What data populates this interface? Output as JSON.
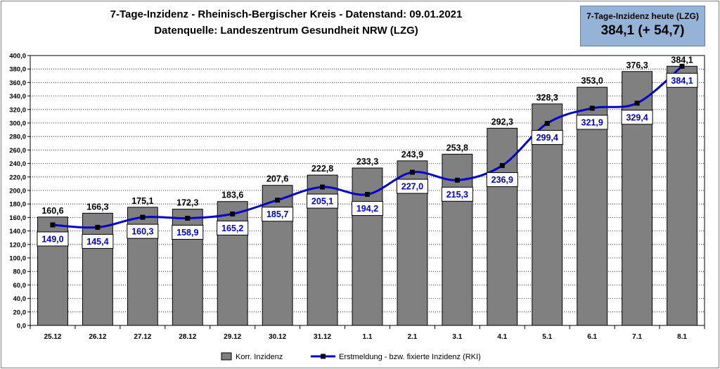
{
  "chart_data": {
    "type": "bar",
    "title": "7-Tage-Inzidenz - Rheinisch-Bergischer Kreis - Datenstand: 09.01.2021",
    "subtitle": "Datenquelle: Landeszentrum Gesundheit NRW (LZG)",
    "categories": [
      "25.12",
      "26.12",
      "27.12",
      "28.12",
      "29.12",
      "30.12",
      "31.12",
      "1.1",
      "2.1",
      "3.1",
      "4.1",
      "5.1",
      "6.1",
      "7.1",
      "8.1"
    ],
    "series": [
      {
        "name": "Korr. Inzidenz",
        "type": "bar",
        "color": "#808080",
        "values": [
          160.6,
          166.3,
          175.1,
          172.3,
          183.6,
          207.6,
          222.8,
          233.3,
          243.9,
          253.8,
          292.3,
          328.3,
          353.0,
          376.3,
          384.1
        ],
        "labels": [
          "160,6",
          "166,3",
          "175,1",
          "172,3",
          "183,6",
          "207,6",
          "222,8",
          "233,3",
          "243,9",
          "253,8",
          "292,3",
          "328,3",
          "353,0",
          "376,3",
          "384,1"
        ]
      },
      {
        "name": "Erstmeldung - bzw. fixierte Inzidenz (RKI)",
        "type": "line",
        "color": "#0000cc",
        "values": [
          149.0,
          145.4,
          160.3,
          158.9,
          165.2,
          185.7,
          205.1,
          194.2,
          227.0,
          215.3,
          236.9,
          299.4,
          321.9,
          329.4,
          384.1
        ],
        "labels": [
          "149,0",
          "145,4",
          "160,3",
          "158,9",
          "165,2",
          "185,7",
          "205,1",
          "194,2",
          "227,0",
          "215,3",
          "236,9",
          "299,4",
          "321,9",
          "329,4",
          "384,1"
        ]
      }
    ],
    "ylim": [
      0,
      400
    ],
    "yticks": [
      0,
      20,
      40,
      60,
      80,
      100,
      120,
      140,
      160,
      180,
      200,
      220,
      240,
      260,
      280,
      300,
      320,
      340,
      360,
      380,
      400
    ],
    "ytick_labels": [
      "0,0",
      "20,0",
      "40,0",
      "60,0",
      "80,0",
      "100,0",
      "120,0",
      "140,0",
      "160,0",
      "180,0",
      "200,0",
      "220,0",
      "240,0",
      "260,0",
      "280,0",
      "300,0",
      "320,0",
      "340,0",
      "360,0",
      "380,0",
      "400,0"
    ],
    "grid": true,
    "legend_position": "bottom"
  },
  "infobox": {
    "label": "7-Tage-Inzidenz heute (LZG)",
    "value": "384,1 (+ 54,7)"
  },
  "colors": {
    "infobox_bg": "#95b3d7",
    "bar": "#808080",
    "line": "#0000cc"
  }
}
